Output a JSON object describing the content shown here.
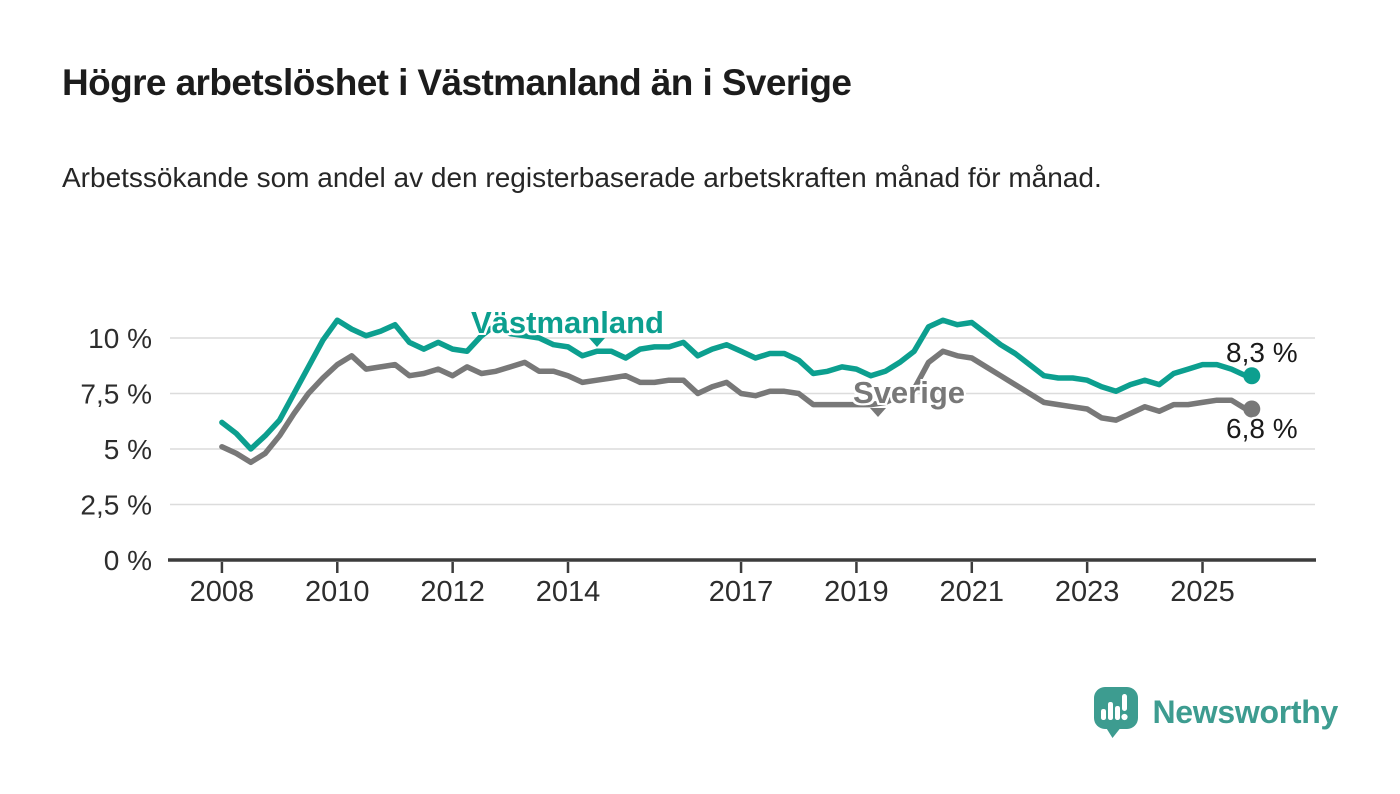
{
  "header": {
    "title": "Högre arbetslöshet i Västmanland än i Sverige",
    "subtitle": "Arbetssökande som andel av den registerbaserade arbetskraften månad för månad."
  },
  "chart_data": {
    "type": "line",
    "title": "Högre arbetslöshet i Västmanland än i Sverige",
    "xlabel": "",
    "ylabel": "",
    "unit": "%",
    "grid": "horizontal",
    "legend_position": "inline-labels",
    "xlim": [
      2007.1,
      2026.95
    ],
    "ylim": [
      0,
      11.6
    ],
    "x_unit": "decimal_year",
    "x": [
      2008,
      2008.25,
      2008.5,
      2008.75,
      2009,
      2009.25,
      2009.5,
      2009.75,
      2010,
      2010.25,
      2010.5,
      2010.75,
      2011,
      2011.25,
      2011.5,
      2011.75,
      2012,
      2012.25,
      2012.5,
      2012.75,
      2013,
      2013.25,
      2013.5,
      2013.75,
      2014,
      2014.25,
      2014.5,
      2014.75,
      2015,
      2015.25,
      2015.5,
      2015.75,
      2016,
      2016.25,
      2016.5,
      2016.75,
      2017,
      2017.25,
      2017.5,
      2017.75,
      2018,
      2018.25,
      2018.5,
      2018.75,
      2019,
      2019.25,
      2019.5,
      2019.75,
      2020,
      2020.25,
      2020.5,
      2020.75,
      2021,
      2021.25,
      2021.5,
      2021.75,
      2022,
      2022.25,
      2022.5,
      2022.75,
      2023,
      2023.25,
      2023.5,
      2023.75,
      2024,
      2024.25,
      2024.5,
      2024.75,
      2025,
      2025.25,
      2025.5,
      2025.75
    ],
    "series": [
      {
        "name": "Västmanland",
        "color": "#0c9f8f",
        "end_value": 8.3,
        "end_label": "8,3 %",
        "values": [
          6.2,
          5.7,
          5.0,
          5.6,
          6.3,
          7.5,
          8.7,
          9.9,
          10.8,
          10.4,
          10.1,
          10.3,
          10.6,
          9.8,
          9.5,
          9.8,
          9.5,
          9.4,
          10.1,
          10.6,
          10.2,
          10.1,
          10.0,
          9.7,
          9.6,
          9.2,
          9.4,
          9.4,
          9.1,
          9.5,
          9.6,
          9.6,
          9.8,
          9.2,
          9.5,
          9.7,
          9.4,
          9.1,
          9.3,
          9.3,
          9.0,
          8.4,
          8.5,
          8.7,
          8.6,
          8.3,
          8.5,
          8.9,
          9.4,
          10.5,
          10.8,
          10.6,
          10.7,
          10.2,
          9.7,
          9.3,
          8.8,
          8.3,
          8.2,
          8.2,
          8.1,
          7.8,
          7.6,
          7.9,
          8.1,
          7.9,
          8.4,
          8.6,
          8.8,
          8.8,
          8.6,
          8.3
        ]
      },
      {
        "name": "Sverige",
        "color": "#787878",
        "end_value": 6.8,
        "end_label": "6,8 %",
        "values": [
          5.1,
          4.8,
          4.4,
          4.8,
          5.6,
          6.6,
          7.5,
          8.2,
          8.8,
          9.2,
          8.6,
          8.7,
          8.8,
          8.3,
          8.4,
          8.6,
          8.3,
          8.7,
          8.4,
          8.5,
          8.7,
          8.9,
          8.5,
          8.5,
          8.3,
          8.0,
          8.1,
          8.2,
          8.3,
          8.0,
          8.0,
          8.1,
          8.1,
          7.5,
          7.8,
          8.0,
          7.5,
          7.4,
          7.6,
          7.6,
          7.5,
          7.0,
          7.0,
          7.0,
          7.0,
          7.0,
          7.1,
          7.4,
          7.7,
          8.9,
          9.4,
          9.2,
          9.1,
          8.7,
          8.3,
          7.9,
          7.5,
          7.1,
          7.0,
          6.9,
          6.8,
          6.4,
          6.3,
          6.6,
          6.9,
          6.7,
          7.0,
          7.0,
          7.1,
          7.2,
          7.2,
          6.8
        ]
      }
    ],
    "x_ticks": {
      "values": [
        2008,
        2010,
        2012,
        2014,
        2017,
        2019,
        2021,
        2023,
        2025
      ],
      "labels": [
        "2008",
        "2010",
        "2012",
        "2014",
        "2017",
        "2019",
        "2021",
        "2023",
        "2025"
      ]
    },
    "y_ticks": {
      "values": [
        0,
        2.5,
        5,
        7.5,
        10
      ],
      "labels": [
        "0 %",
        "2,5 %",
        "5 %",
        "7,5 %",
        "10 %"
      ]
    }
  },
  "colors": {
    "vastmanland": "#0c9f8f",
    "sverige": "#787878",
    "brand": "#3d9c90",
    "gridline": "#dcdcdc",
    "axis": "#3c3c3c"
  },
  "footer": {
    "brand": "Newsworthy"
  }
}
